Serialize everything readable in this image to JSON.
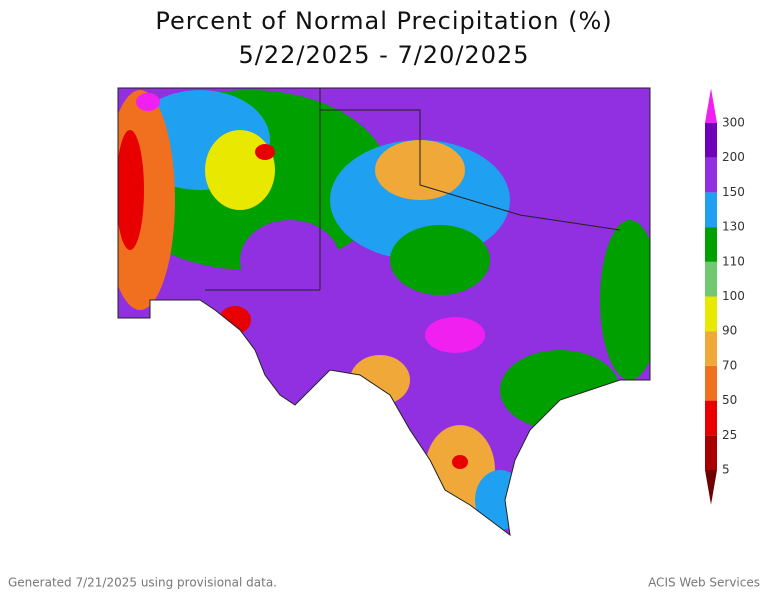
{
  "header": {
    "title": "Percent of Normal Precipitation (%)",
    "subtitle": "5/22/2025 - 7/20/2025"
  },
  "legend": {
    "labels": [
      5,
      25,
      50,
      70,
      90,
      100,
      110,
      130,
      150,
      200,
      300
    ],
    "colors": [
      "#6e0000",
      "#a80000",
      "#e80000",
      "#f07020",
      "#f0a838",
      "#e8e800",
      "#70c870",
      "#00a000",
      "#20a0f0",
      "#9030e0",
      "#7000b8",
      "#f020f0"
    ]
  },
  "footer": {
    "left": "Generated 7/21/2025 using provisional data.",
    "right": "ACIS Web Services"
  }
}
